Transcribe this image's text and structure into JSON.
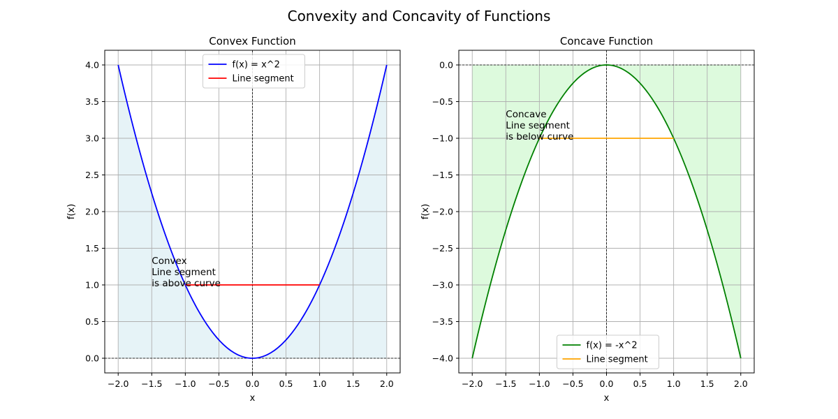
{
  "figure": {
    "suptitle": "Convexity and Concavity of Functions"
  },
  "chart_data": [
    {
      "type": "line",
      "title": "Convex Function",
      "xlabel": "x",
      "ylabel": "f(x)",
      "xlim": [
        -2.2,
        2.2
      ],
      "ylim": [
        -0.2,
        4.2
      ],
      "xticks": [
        -2.0,
        -1.5,
        -1.0,
        -0.5,
        0.0,
        0.5,
        1.0,
        1.5,
        2.0
      ],
      "yticks": [
        0.0,
        0.5,
        1.0,
        1.5,
        2.0,
        2.5,
        3.0,
        3.5,
        4.0
      ],
      "xtick_labels": [
        "−2.0",
        "−1.5",
        "−1.0",
        "−0.5",
        "0.0",
        "0.5",
        "1.0",
        "1.5",
        "2.0"
      ],
      "ytick_labels": [
        "0.0",
        "0.5",
        "1.0",
        "1.5",
        "2.0",
        "2.5",
        "3.0",
        "3.5",
        "4.0"
      ],
      "grid": true,
      "legend_position": "upper-center",
      "series": [
        {
          "name": "f(x) = x^2",
          "color": "#0000ff",
          "x": [
            -2.0,
            -1.5,
            -1.0,
            -0.5,
            0.0,
            0.5,
            1.0,
            1.5,
            2.0
          ],
          "y": [
            4.0,
            2.25,
            1.0,
            0.25,
            0.0,
            0.25,
            1.0,
            2.25,
            4.0
          ]
        },
        {
          "name": "Line segment",
          "color": "#ff0000",
          "x": [
            -1.0,
            1.0
          ],
          "y": [
            1.0,
            1.0
          ]
        }
      ],
      "fill": {
        "color": "#add8e6",
        "opacity": 0.3,
        "baseline": 0.0
      },
      "annotation": {
        "lines": [
          "Convex",
          "Line segment",
          "is above curve"
        ],
        "x": -1.5,
        "y": 1.0
      }
    },
    {
      "type": "line",
      "title": "Concave Function",
      "xlabel": "x",
      "ylabel": "f(x)",
      "xlim": [
        -2.2,
        2.2
      ],
      "ylim": [
        -4.2,
        0.2
      ],
      "xticks": [
        -2.0,
        -1.5,
        -1.0,
        -0.5,
        0.0,
        0.5,
        1.0,
        1.5,
        2.0
      ],
      "yticks": [
        -4.0,
        -3.5,
        -3.0,
        -2.5,
        -2.0,
        -1.5,
        -1.0,
        -0.5,
        0.0
      ],
      "xtick_labels": [
        "−2.0",
        "−1.5",
        "−1.0",
        "−0.5",
        "0.0",
        "0.5",
        "1.0",
        "1.5",
        "2.0"
      ],
      "ytick_labels": [
        "−4.0",
        "−3.5",
        "−3.0",
        "−2.5",
        "−2.0",
        "−1.5",
        "−1.0",
        "−0.5",
        "0.0"
      ],
      "grid": true,
      "legend_position": "lower-center",
      "series": [
        {
          "name": "f(x) = -x^2",
          "color": "#008000",
          "x": [
            -2.0,
            -1.5,
            -1.0,
            -0.5,
            0.0,
            0.5,
            1.0,
            1.5,
            2.0
          ],
          "y": [
            -4.0,
            -2.25,
            -1.0,
            -0.25,
            0.0,
            -0.25,
            -1.0,
            -2.25,
            -4.0
          ]
        },
        {
          "name": "Line segment",
          "color": "#ffa500",
          "x": [
            -1.0,
            1.0
          ],
          "y": [
            -1.0,
            -1.0
          ]
        }
      ],
      "fill": {
        "color": "#90ee90",
        "opacity": 0.3,
        "baseline": 0.0
      },
      "annotation": {
        "lines": [
          "Concave",
          "Line segment",
          "is below curve"
        ],
        "x": -1.5,
        "y": -1.0
      }
    }
  ]
}
